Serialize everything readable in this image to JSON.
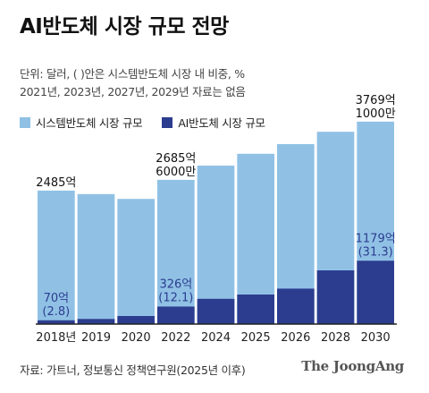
{
  "header": {
    "title": "AI반도체 시장 규모 전망",
    "note_line1": "단위: 달러, ( )안은 시스템반도체 시장 내 비중, %",
    "note_line2": "2021년, 2023년, 2027년, 2029년 자료는 없음"
  },
  "footer": {
    "source": "자료: 가트너, 정보통신 정책연구원(2025년 이후)",
    "brand": "The JoongAng"
  },
  "colors": {
    "system": "#90c1e5",
    "ai": "#2c3d8f",
    "baseline": "#222222",
    "label_ai": "#2c3d8f",
    "label_system": "#111111"
  },
  "chart_data": {
    "type": "bar",
    "stacked": false,
    "categories": [
      "2018년",
      "2019",
      "2020",
      "2022",
      "2024",
      "2025",
      "2026",
      "2028",
      "2030"
    ],
    "series": [
      {
        "name": "시스템반도체 시장 규모",
        "values": [
          2485,
          2420,
          2330,
          2685,
          2950,
          3170,
          3350,
          3580,
          3769
        ]
      },
      {
        "name": "AI반도체 시장 규모",
        "values": [
          70,
          95,
          150,
          326,
          470,
          550,
          660,
          1000,
          1179
        ]
      }
    ],
    "ylim": [
      0,
      4000
    ],
    "annotations": [
      {
        "category_index": 0,
        "series": "system",
        "lines": [
          "2485억"
        ]
      },
      {
        "category_index": 3,
        "series": "system",
        "lines": [
          "2685억",
          "6000만"
        ]
      },
      {
        "category_index": 8,
        "series": "system",
        "lines": [
          "3769억",
          "1000만"
        ]
      },
      {
        "category_index": 0,
        "series": "ai",
        "lines": [
          "70억",
          "(2.8)"
        ]
      },
      {
        "category_index": 3,
        "series": "ai",
        "lines": [
          "326억",
          "(12.1)"
        ]
      },
      {
        "category_index": 8,
        "series": "ai",
        "lines": [
          "1179억",
          "(31.3)"
        ]
      }
    ]
  }
}
